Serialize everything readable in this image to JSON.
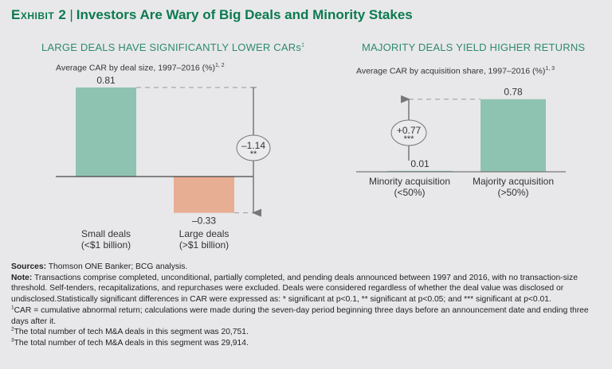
{
  "header": {
    "exhibit_label": "Exhibit 2",
    "title": "Investors Are Wary of Big Deals and Minority Stakes"
  },
  "colors": {
    "green_bar": "#8fc3b1",
    "salmon_bar": "#e8ae94",
    "title_green": "#0d7a50",
    "panel_title_green": "#2e8b6a",
    "arrow_gray": "#777777"
  },
  "chart_data": [
    {
      "type": "bar",
      "title": "LARGE DEALS HAVE SIGNIFICANTLY LOWER CARs",
      "title_sup": "1",
      "subtitle": "Average CAR by deal size, 1997–2016 (%)",
      "subtitle_sup": "1, 2",
      "categories": [
        "Small deals\n(<$1 billion)",
        "Large deals\n(>$1 billion)"
      ],
      "category_lines": [
        [
          "Small deals",
          "(<$1 billion)"
        ],
        [
          "Large deals",
          "(>$1 billion)"
        ]
      ],
      "values": [
        0.81,
        -0.33
      ],
      "value_labels": [
        "0.81",
        "–0.33"
      ],
      "bar_colors": [
        "#8fc3b1",
        "#e8ae94"
      ],
      "difference": {
        "label": "–1.14",
        "significance": "**",
        "direction": "down"
      },
      "ylim": [
        -0.33,
        0.81
      ],
      "xlabel": "",
      "ylabel": "",
      "grid": false
    },
    {
      "type": "bar",
      "title": "MAJORITY DEALS YIELD HIGHER RETURNS",
      "subtitle": "Average CAR by acquisition share, 1997–2016 (%)",
      "subtitle_sup": "1, 3",
      "categories": [
        "Minority acquisition\n(<50%)",
        "Majority acquisition\n(>50%)"
      ],
      "category_lines": [
        [
          "Minority acquisition",
          "(<50%)"
        ],
        [
          "Majority acquisition",
          "(>50%)"
        ]
      ],
      "values": [
        0.01,
        0.78
      ],
      "value_labels": [
        "0.01",
        "0.78"
      ],
      "bar_colors": [
        "#8fc3b1",
        "#8fc3b1"
      ],
      "difference": {
        "label": "+0.77",
        "significance": "***",
        "direction": "up"
      },
      "ylim": [
        0,
        0.78
      ],
      "xlabel": "",
      "ylabel": "",
      "grid": false
    }
  ],
  "notes": {
    "sources_label": "Sources:",
    "sources_text": " Thomson ONE Banker; BCG analysis.",
    "note_label": "Note:",
    "note_text": " Transactions comprise completed, unconditional, partially completed, and pending deals announced between 1997 and 2016, with no transaction-size threshold. Self-tenders, recapitalizations, and repurchases were excluded. Deals were considered regardless of whether the deal value was disclosed or undisclosed.Statistically significant differences in CAR were expressed as: * significant at p<0.1, ** significant at p<0.05; and *** significant at p<0.01.",
    "footnotes": [
      {
        "mark": "1",
        "text": "CAR = cumulative abnormal return; calculations were made during the seven-day period beginning three days before an announcement date and ending three days after it."
      },
      {
        "mark": "2",
        "text": "The total number of tech M&A deals in this segment was 20,751."
      },
      {
        "mark": "3",
        "text": "The total number of tech M&A deals in this segment was 29,914."
      }
    ]
  }
}
